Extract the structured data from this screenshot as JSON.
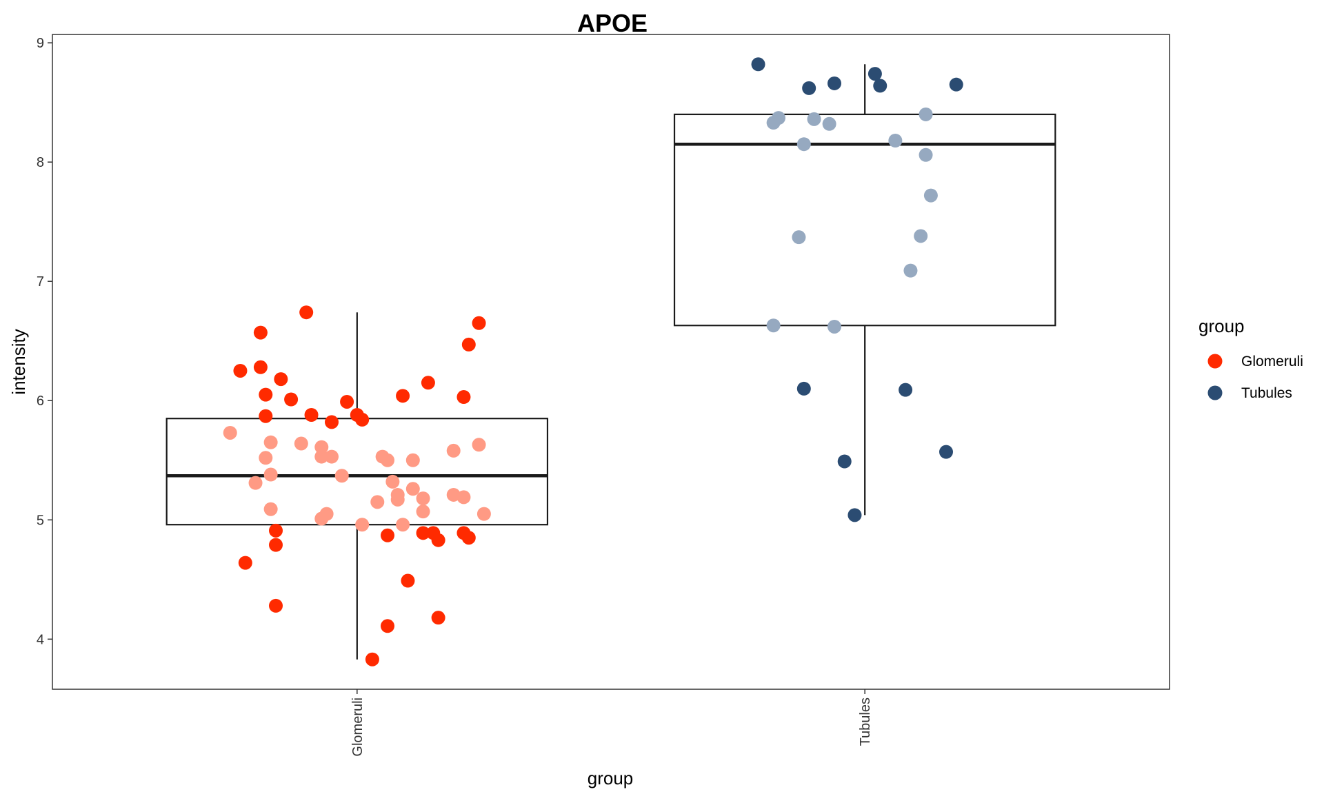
{
  "chart_data": {
    "type": "box",
    "title": "APOE",
    "xlabel": "group",
    "ylabel": "intensity",
    "ylim": [
      3.58,
      9.07
    ],
    "yticks": [
      "4",
      "5",
      "6",
      "7",
      "8",
      "9"
    ],
    "categories": [
      "Glomeruli",
      "Tubules"
    ],
    "grid": false,
    "legend": {
      "title": "group",
      "placement": "right",
      "entries": [
        {
          "label": "Glomeruli",
          "color": "#FF2A00"
        },
        {
          "label": "Tubules",
          "color": "#2B4C72"
        }
      ]
    },
    "colors": {
      "Glomeruli": "#FF2A00",
      "Glomeruli_inner": "#FF9A84",
      "Tubules": "#2B4C72",
      "Tubules_inner": "#96A9C0"
    },
    "boxes": [
      {
        "category": "Glomeruli",
        "min": 3.83,
        "q1": 4.96,
        "median": 5.37,
        "q3": 5.85,
        "max": 6.74
      },
      {
        "category": "Tubules",
        "min": 5.04,
        "q1": 6.63,
        "median": 8.15,
        "q3": 8.4,
        "max": 8.82
      }
    ],
    "series": [
      {
        "category": "Glomeruli",
        "points": [
          {
            "x": 0.9,
            "y": 6.74
          },
          {
            "x": 0.81,
            "y": 6.57
          },
          {
            "x": 1.24,
            "y": 6.65
          },
          {
            "x": 1.22,
            "y": 6.47
          },
          {
            "x": 0.77,
            "y": 6.25
          },
          {
            "x": 0.81,
            "y": 6.28
          },
          {
            "x": 0.85,
            "y": 6.18
          },
          {
            "x": 1.14,
            "y": 6.15
          },
          {
            "x": 0.82,
            "y": 6.05
          },
          {
            "x": 0.87,
            "y": 6.01
          },
          {
            "x": 0.98,
            "y": 5.99
          },
          {
            "x": 1.09,
            "y": 6.04
          },
          {
            "x": 1.21,
            "y": 6.03
          },
          {
            "x": 0.82,
            "y": 5.87
          },
          {
            "x": 0.91,
            "y": 5.88
          },
          {
            "x": 0.95,
            "y": 5.82
          },
          {
            "x": 1.0,
            "y": 5.88
          },
          {
            "x": 1.01,
            "y": 5.84
          },
          {
            "x": 0.84,
            "y": 4.91
          },
          {
            "x": 1.06,
            "y": 4.87
          },
          {
            "x": 1.13,
            "y": 4.89
          },
          {
            "x": 1.15,
            "y": 4.89
          },
          {
            "x": 1.16,
            "y": 4.83
          },
          {
            "x": 1.21,
            "y": 4.89
          },
          {
            "x": 1.22,
            "y": 4.85
          },
          {
            "x": 0.84,
            "y": 4.79
          },
          {
            "x": 0.78,
            "y": 4.64
          },
          {
            "x": 1.1,
            "y": 4.49
          },
          {
            "x": 0.84,
            "y": 4.28
          },
          {
            "x": 1.06,
            "y": 4.11
          },
          {
            "x": 1.16,
            "y": 4.18
          },
          {
            "x": 1.03,
            "y": 3.83
          }
        ]
      },
      {
        "category": "Glomeruli (within box)",
        "points": [
          {
            "x": 0.75,
            "y": 5.73
          },
          {
            "x": 0.83,
            "y": 5.65
          },
          {
            "x": 0.89,
            "y": 5.64
          },
          {
            "x": 0.93,
            "y": 5.61
          },
          {
            "x": 1.19,
            "y": 5.58
          },
          {
            "x": 1.24,
            "y": 5.63
          },
          {
            "x": 0.82,
            "y": 5.52
          },
          {
            "x": 0.93,
            "y": 5.53
          },
          {
            "x": 0.95,
            "y": 5.53
          },
          {
            "x": 1.05,
            "y": 5.53
          },
          {
            "x": 1.06,
            "y": 5.5
          },
          {
            "x": 1.11,
            "y": 5.5
          },
          {
            "x": 0.83,
            "y": 5.38
          },
          {
            "x": 0.97,
            "y": 5.37
          },
          {
            "x": 1.07,
            "y": 5.32
          },
          {
            "x": 0.8,
            "y": 5.31
          },
          {
            "x": 1.11,
            "y": 5.26
          },
          {
            "x": 1.08,
            "y": 5.21
          },
          {
            "x": 1.13,
            "y": 5.18
          },
          {
            "x": 1.19,
            "y": 5.21
          },
          {
            "x": 1.21,
            "y": 5.19
          },
          {
            "x": 1.08,
            "y": 5.17
          },
          {
            "x": 1.04,
            "y": 5.15
          },
          {
            "x": 0.83,
            "y": 5.09
          },
          {
            "x": 0.94,
            "y": 5.05
          },
          {
            "x": 0.93,
            "y": 5.01
          },
          {
            "x": 1.13,
            "y": 5.07
          },
          {
            "x": 1.25,
            "y": 5.05
          },
          {
            "x": 1.01,
            "y": 4.96
          },
          {
            "x": 1.09,
            "y": 4.96
          }
        ]
      },
      {
        "category": "Tubules",
        "points": [
          {
            "x": 1.79,
            "y": 8.82
          },
          {
            "x": 1.89,
            "y": 8.62
          },
          {
            "x": 1.94,
            "y": 8.66
          },
          {
            "x": 2.02,
            "y": 8.74
          },
          {
            "x": 2.03,
            "y": 8.64
          },
          {
            "x": 2.18,
            "y": 8.65
          },
          {
            "x": 1.88,
            "y": 6.1
          },
          {
            "x": 2.08,
            "y": 6.09
          },
          {
            "x": 2.16,
            "y": 5.57
          },
          {
            "x": 1.96,
            "y": 5.49
          },
          {
            "x": 1.98,
            "y": 5.04
          }
        ]
      },
      {
        "category": "Tubules (within box)",
        "points": [
          {
            "x": 1.83,
            "y": 8.37
          },
          {
            "x": 1.82,
            "y": 8.33
          },
          {
            "x": 1.9,
            "y": 8.36
          },
          {
            "x": 1.93,
            "y": 8.32
          },
          {
            "x": 2.12,
            "y": 8.4
          },
          {
            "x": 2.06,
            "y": 8.18
          },
          {
            "x": 1.88,
            "y": 8.15
          },
          {
            "x": 2.12,
            "y": 8.06
          },
          {
            "x": 2.13,
            "y": 7.72
          },
          {
            "x": 1.87,
            "y": 7.37
          },
          {
            "x": 2.11,
            "y": 7.38
          },
          {
            "x": 2.09,
            "y": 7.09
          },
          {
            "x": 1.82,
            "y": 6.63
          },
          {
            "x": 1.94,
            "y": 6.62
          }
        ]
      }
    ]
  }
}
